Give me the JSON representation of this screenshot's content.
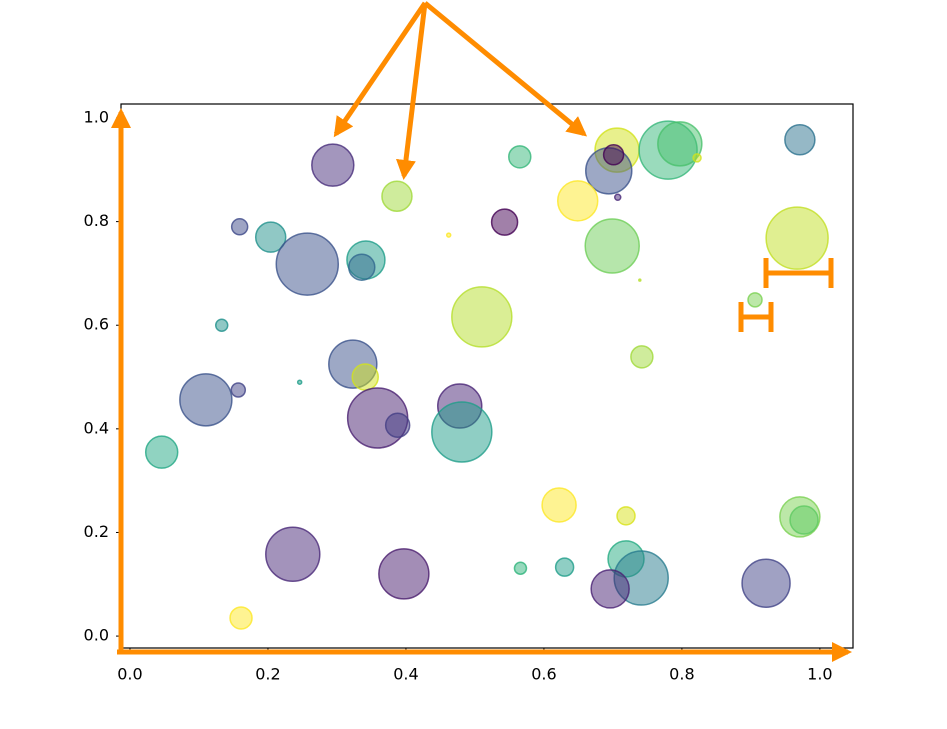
{
  "chart_data": {
    "type": "scatter",
    "x": [
      0.294,
      0.387,
      0.159,
      0.204,
      0.257,
      0.342,
      0.336,
      0.543,
      0.462,
      0.565,
      0.706,
      0.694,
      0.701,
      0.707,
      0.649,
      0.699,
      0.78,
      0.797,
      0.822,
      0.971,
      0.967,
      0.906,
      0.739,
      0.51,
      0.133,
      0.323,
      0.341,
      0.246,
      0.157,
      0.11,
      0.359,
      0.388,
      0.478,
      0.481,
      0.742,
      0.046,
      0.622,
      0.719,
      0.971,
      0.977,
      0.236,
      0.397,
      0.566,
      0.63,
      0.719,
      0.741,
      0.696,
      0.922,
      0.161
    ],
    "values": [
      0.909,
      0.849,
      0.79,
      0.77,
      0.718,
      0.726,
      0.712,
      0.799,
      0.774,
      0.925,
      0.938,
      0.898,
      0.929,
      0.847,
      0.84,
      0.753,
      0.938,
      0.95,
      0.923,
      0.958,
      0.768,
      0.649,
      0.687,
      0.616,
      0.6,
      0.525,
      0.5,
      0.49,
      0.475,
      0.456,
      0.421,
      0.407,
      0.444,
      0.394,
      0.539,
      0.355,
      0.253,
      0.232,
      0.23,
      0.224,
      0.158,
      0.12,
      0.131,
      0.133,
      0.149,
      0.112,
      0.091,
      0.102,
      0.035
    ],
    "sizes": [
      441,
      225,
      64,
      225,
      961,
      361,
      169,
      169,
      4,
      121,
      484,
      529,
      100,
      9,
      400,
      729,
      841,
      484,
      16,
      225,
      961,
      49,
      1,
      900,
      36,
      576,
      169,
      4,
      49,
      676,
      900,
      144,
      484,
      900,
      121,
      256,
      289,
      81,
      400,
      196,
      729,
      625,
      36,
      81,
      324,
      729,
      361,
      576,
      121
    ],
    "colors": [
      "#472d7b",
      "#a0da39",
      "#3e4a89",
      "#21918c",
      "#3b528b",
      "#1f9e89",
      "#31688e",
      "#440154",
      "#fde725",
      "#35b779",
      "#d2e21b",
      "#3b528b",
      "#440154",
      "#482878",
      "#fde725",
      "#6ece58",
      "#35b779",
      "#4ac16d",
      "#d2e21b",
      "#2c728e",
      "#c2df23",
      "#7ad151",
      "#b5de2b",
      "#b5de2b",
      "#21918c",
      "#3b528b",
      "#d2e21b",
      "#1f9e89",
      "#414487",
      "#3b528b",
      "#481f70",
      "#433e85",
      "#482475",
      "#1f9e89",
      "#a0da39",
      "#22a884",
      "#fde725",
      "#d8e219",
      "#7ad151",
      "#5ec962",
      "#482878",
      "#481b6d",
      "#2fb47c",
      "#1f9e89",
      "#25ab82",
      "#287c8e",
      "#482173",
      "#414487",
      "#fde725"
    ],
    "alpha": 0.5,
    "xlim": [
      -0.013,
      1.048
    ],
    "ylim": [
      -0.023,
      1.027
    ],
    "xticks": [
      {
        "value": 0,
        "label": "0.0"
      },
      0.2,
      0.4,
      0.6,
      0.8,
      {
        "value": 1,
        "label": "1.0"
      }
    ],
    "yticks": [
      {
        "value": 0,
        "label": "0.0"
      },
      0.2,
      0.4,
      0.6,
      0.8,
      {
        "value": 1,
        "label": "1.0"
      }
    ]
  }
}
